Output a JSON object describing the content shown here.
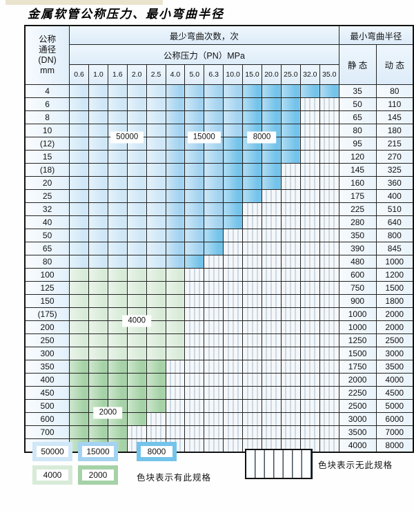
{
  "title": "金属软管公称压力、最小弯曲半径",
  "colors": {
    "blue_50000": "#cfe7f7",
    "blue_15000": "#a3d3f0",
    "blue_8000": "#74c3ea",
    "green_4000": "#d8ebd8",
    "green_2000": "#a5d2a6",
    "hatch_line": "#a8b8c4"
  },
  "table": {
    "header": {
      "dn_lines": [
        "公称",
        "通径",
        "(DN)",
        "mm"
      ],
      "cycles_label": "最少弯曲次数，次",
      "pressure_label": "公称压力（PN）MPa",
      "radius_label": "最小弯曲半径",
      "static_label": "静 态",
      "dynamic_label": "动 态",
      "pressures": [
        "0.6",
        "1.0",
        "1.6",
        "2.0",
        "2.5",
        "4.0",
        "5.0",
        "6.3",
        "10.0",
        "15.0",
        "20.0",
        "25.0",
        "32.0",
        "35.0"
      ]
    },
    "cell_code_meaning": {
      "1": "cycles 50000",
      "2": "cycles 15000",
      "3": "cycles 8000",
      "4": "cycles 4000",
      "5": "cycles 2000",
      "x": "no specification"
    },
    "rows": [
      {
        "dn": "4",
        "static": "35",
        "dynamic": "80",
        "cells": "11111222233333"
      },
      {
        "dn": "6",
        "static": "50",
        "dynamic": "110",
        "cells": "111112222333xx"
      },
      {
        "dn": "8",
        "static": "65",
        "dynamic": "145",
        "cells": "111112222333xx"
      },
      {
        "dn": "10",
        "static": "80",
        "dynamic": "180",
        "cells": "111112222333xx"
      },
      {
        "dn": "(12)",
        "static": "95",
        "dynamic": "215",
        "cells": "111112223333xx"
      },
      {
        "dn": "15",
        "static": "120",
        "dynamic": "270",
        "cells": "111112223333xx"
      },
      {
        "dn": "(18)",
        "static": "145",
        "dynamic": "325",
        "cells": "11111222333xxx"
      },
      {
        "dn": "20",
        "static": "160",
        "dynamic": "360",
        "cells": "11111222333xxx"
      },
      {
        "dn": "25",
        "static": "175",
        "dynamic": "400",
        "cells": "1111122233xxxx"
      },
      {
        "dn": "32",
        "static": "225",
        "dynamic": "510",
        "cells": "111112223xxxxx"
      },
      {
        "dn": "40",
        "static": "280",
        "dynamic": "640",
        "cells": "111112223xxxxx"
      },
      {
        "dn": "50",
        "static": "350",
        "dynamic": "800",
        "cells": "11111223xxxxxx"
      },
      {
        "dn": "65",
        "static": "390",
        "dynamic": "845",
        "cells": "11111223xxxxxx"
      },
      {
        "dn": "80",
        "static": "480",
        "dynamic": "1000",
        "cells": "1111123xxxxxxx"
      },
      {
        "dn": "100",
        "static": "600",
        "dynamic": "1200",
        "cells": "444444xxxxxxxx"
      },
      {
        "dn": "125",
        "static": "750",
        "dynamic": "1500",
        "cells": "444444xxxxxxxx"
      },
      {
        "dn": "150",
        "static": "900",
        "dynamic": "1800",
        "cells": "444444xxxxxxxx"
      },
      {
        "dn": "(175)",
        "static": "1000",
        "dynamic": "2000",
        "cells": "444444xxxxxxxx"
      },
      {
        "dn": "200",
        "static": "1000",
        "dynamic": "2000",
        "cells": "444444xxxxxxxx"
      },
      {
        "dn": "250",
        "static": "1250",
        "dynamic": "2500",
        "cells": "444444xxxxxxxx"
      },
      {
        "dn": "300",
        "static": "1500",
        "dynamic": "3000",
        "cells": "444444xxxxxxxx"
      },
      {
        "dn": "350",
        "static": "1750",
        "dynamic": "3500",
        "cells": "55555xxxxxxxxx"
      },
      {
        "dn": "400",
        "static": "2000",
        "dynamic": "4000",
        "cells": "55555xxxxxxxxx"
      },
      {
        "dn": "450",
        "static": "2250",
        "dynamic": "4500",
        "cells": "55555xxxxxxxxx"
      },
      {
        "dn": "500",
        "static": "2500",
        "dynamic": "5000",
        "cells": "55555xxxxxxxxx"
      },
      {
        "dn": "600",
        "static": "3000",
        "dynamic": "6000",
        "cells": "5555xxxxxxxxxx"
      },
      {
        "dn": "700",
        "static": "3500",
        "dynamic": "7000",
        "cells": "555xxxxxxxxxxx"
      },
      {
        "dn": "800",
        "static": "4000",
        "dynamic": "8000",
        "cells": "555xxxxxxxxxxx"
      }
    ]
  },
  "cell_labels": [
    {
      "text": "50000",
      "row": "10",
      "col_from": 3,
      "col_to": 4
    },
    {
      "text": "15000",
      "row": "10",
      "col_from": 7,
      "col_to": 8
    },
    {
      "text": "8000",
      "row": "10",
      "col_from": 10,
      "col_to": 11
    },
    {
      "text": "4000",
      "row": "(175)",
      "col_from": 3,
      "col_to": 5
    },
    {
      "text": "2000",
      "row": "500",
      "col_from": 2,
      "col_to": 3
    }
  ],
  "legend": {
    "swatches": [
      {
        "label": "50000",
        "type": "b1"
      },
      {
        "label": "15000",
        "type": "b2"
      },
      {
        "label": "8000",
        "type": "b3"
      },
      {
        "label": "4000",
        "type": "g1"
      },
      {
        "label": "2000",
        "type": "g2"
      }
    ],
    "has_spec_text": "色块表示有此规格",
    "no_spec_text": "色块表示无此规格"
  }
}
